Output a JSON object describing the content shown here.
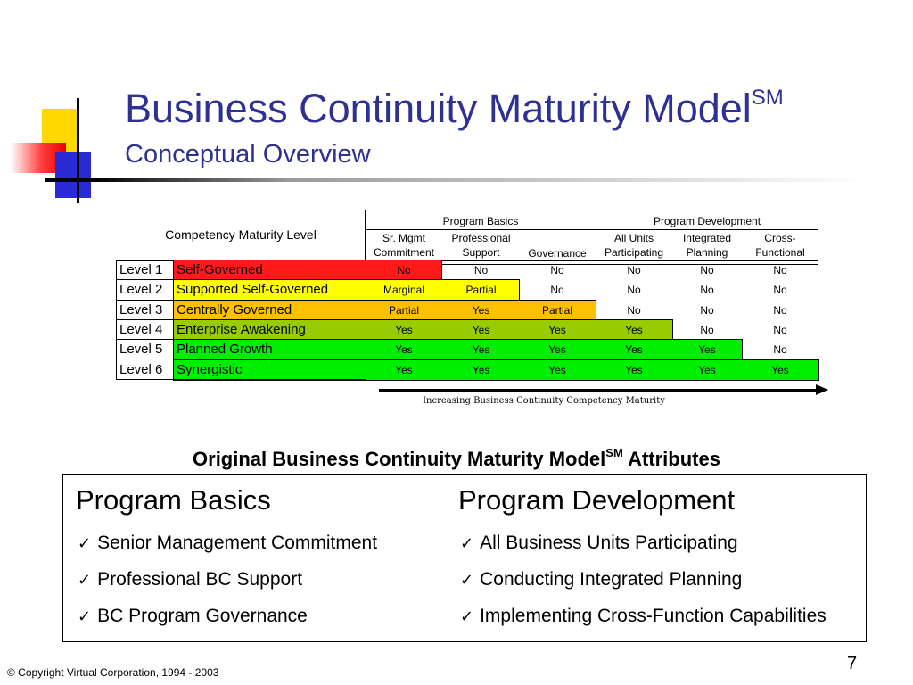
{
  "slide": {
    "title": "Business Continuity Maturity Model",
    "title_sup": "SM",
    "subtitle": "Conceptual Overview"
  },
  "grid": {
    "left_header": "Competency Maturity Level",
    "group_program_basics": "Program Basics",
    "group_program_development": "Program Development",
    "columns": [
      [
        "Sr. Mgmt",
        "Commitment"
      ],
      [
        "Professional",
        "Support"
      ],
      [
        "Governance"
      ],
      [
        "All Units",
        "Participating"
      ],
      [
        "Integrated",
        "Planning"
      ],
      [
        "Cross-",
        "Functional"
      ]
    ],
    "rows": [
      {
        "level": "Level 1",
        "name": "Self-Governed",
        "color": "#ff1a1a",
        "values": [
          "No",
          "No",
          "No",
          "No",
          "No",
          "No"
        ]
      },
      {
        "level": "Level 2",
        "name": "Supported Self-Governed",
        "color": "#ffff00",
        "values": [
          "Marginal",
          "Partial",
          "No",
          "No",
          "No",
          "No"
        ]
      },
      {
        "level": "Level 3",
        "name": "Centrally Governed",
        "color": "#ffc000",
        "values": [
          "Partial",
          "Yes",
          "Partial",
          "No",
          "No",
          "No"
        ]
      },
      {
        "level": "Level 4",
        "name": "Enterprise Awakening",
        "color": "#99cc00",
        "values": [
          "Yes",
          "Yes",
          "Yes",
          "Yes",
          "No",
          "No"
        ]
      },
      {
        "level": "Level 5",
        "name": "Planned Growth",
        "color": "#00ee00",
        "values": [
          "Yes",
          "Yes",
          "Yes",
          "Yes",
          "Yes",
          "No"
        ]
      },
      {
        "level": "Level 6",
        "name": "Synergistic",
        "color": "#00ee00",
        "values": [
          "Yes",
          "Yes",
          "Yes",
          "Yes",
          "Yes",
          "Yes"
        ]
      }
    ],
    "arrow_caption": "Increasing Business Continuity Competency Maturity"
  },
  "attributes": {
    "title_pre": "Original Business Continuity Maturity Model",
    "title_sup": "SM",
    "title_post": " Attributes",
    "left_heading": "Program Basics",
    "right_heading": "Program Development",
    "check": "✓",
    "left_items": [
      "Senior Management Commitment",
      "Professional BC Support",
      "BC Program Governance"
    ],
    "right_items": [
      "All Business Units Participating",
      "Conducting Integrated Planning",
      "Implementing Cross-Function Capabilities"
    ]
  },
  "footer": {
    "copyright": "© Copyright Virtual Corporation, 1994 - 2003",
    "page_number": "7"
  }
}
